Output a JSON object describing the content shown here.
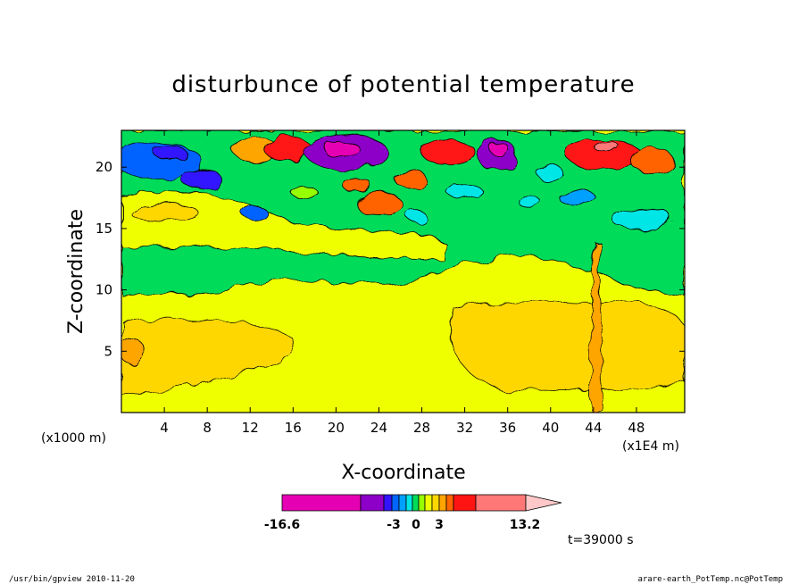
{
  "chart_data": {
    "type": "heatmap",
    "title": "disturbunce of potential temperature",
    "xlabel": "X-coordinate",
    "ylabel": "Z-coordinate",
    "x_unit_label": "(x1000 m)",
    "x_scale_label": "(x1E4 m)",
    "xlim": [
      0,
      52.5
    ],
    "ylim": [
      0,
      23
    ],
    "x_ticks": [
      4,
      8,
      12,
      16,
      20,
      24,
      28,
      32,
      36,
      40,
      44,
      48
    ],
    "y_ticks": [
      5,
      10,
      15,
      20
    ],
    "colorbar": {
      "min_label": "-16.6",
      "max_label": "13.2",
      "tick_labels": [
        "-3",
        "0",
        "3"
      ],
      "colors": [
        "#e600b4",
        "#8c00c8",
        "#3214ff",
        "#0064ff",
        "#00a0ff",
        "#00e6e6",
        "#00dc5a",
        "#96ff00",
        "#f0ff00",
        "#ffd700",
        "#ffa500",
        "#ff6400",
        "#ff1414",
        "#ff7878",
        "#ffc8c8"
      ]
    },
    "background_level_color": "#f0ff00",
    "regions": [
      {
        "name": "upper-turbulent-layer",
        "level_color": "#00dc5a",
        "z_range": [
          9.5,
          23
        ]
      },
      {
        "name": "warm-lower-layer-left",
        "level_color": "#ffd700",
        "z_range": [
          2,
          7.5
        ]
      },
      {
        "name": "warm-lower-layer-right",
        "level_color": "#ffd700",
        "z_range": [
          2,
          9
        ]
      },
      {
        "name": "cold-core-20",
        "level_color": "#8c00c8",
        "x": 20,
        "z": 21
      },
      {
        "name": "cold-core-35",
        "level_color": "#8c00c8",
        "x": 35,
        "z": 21
      },
      {
        "name": "warm-core-45",
        "level_color": "#ff7878",
        "x": 45,
        "z": 21
      },
      {
        "name": "narrow-plume",
        "level_color": "#ffa500",
        "x": 44.2,
        "z_range": [
          0,
          14
        ]
      }
    ],
    "time_label": "t=39000 s"
  },
  "footer": {
    "left": "/usr/bin/gpview   2010-11-20",
    "right": "arare-earth_PotTemp.nc@PotTemp"
  }
}
